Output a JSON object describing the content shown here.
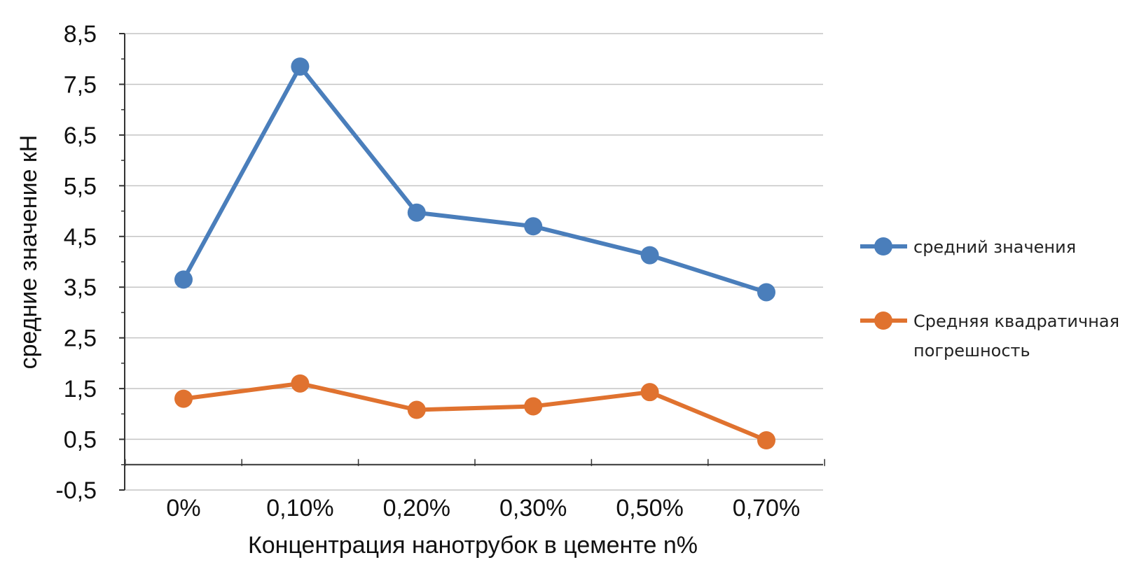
{
  "chart_data": {
    "type": "line",
    "title": "",
    "xlabel": "Концентрация нанотрубок в цементе n%",
    "ylabel": "средние значение кН",
    "categories": [
      "0%",
      "0,10%",
      "0,20%",
      "0,30%",
      "0,50%",
      "0,70%"
    ],
    "ylim": [
      -0.5,
      8.5
    ],
    "yticks": [
      "-0,5",
      "0,5",
      "1,5",
      "2,5",
      "3,5",
      "4,5",
      "5,5",
      "6,5",
      "7,5",
      "8,5"
    ],
    "grid": true,
    "legend_position": "right",
    "series": [
      {
        "name": "средний значения",
        "legend_lines": [
          "средний значения"
        ],
        "color": "#4a7ebb",
        "values": [
          3.65,
          7.85,
          4.97,
          4.7,
          4.13,
          3.4
        ]
      },
      {
        "name": "Средняя квадратичная погрешность",
        "legend_lines": [
          "Средняя квадратичная",
          "погрешность"
        ],
        "color": "#e0722f",
        "values": [
          1.3,
          1.6,
          1.08,
          1.15,
          1.43,
          0.48
        ]
      }
    ]
  }
}
